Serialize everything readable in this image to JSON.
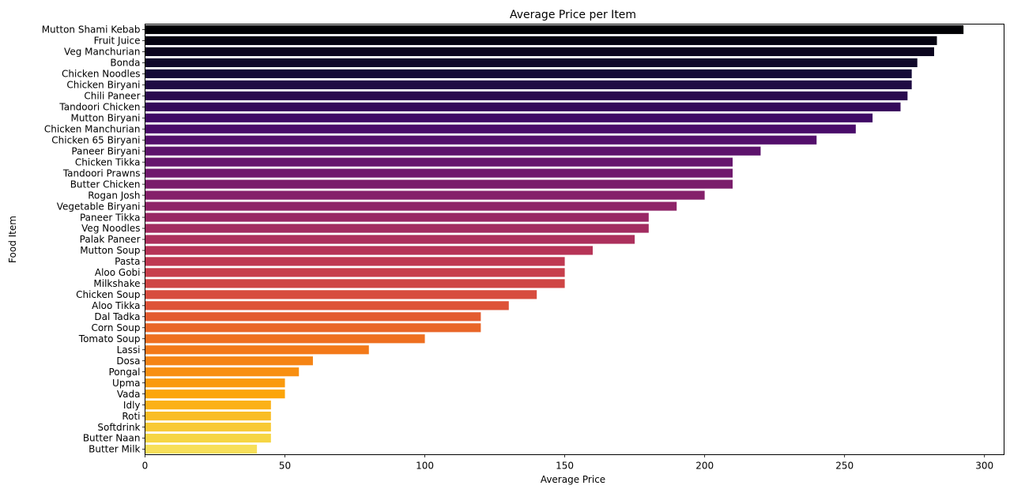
{
  "chart_data": {
    "type": "bar",
    "orientation": "horizontal",
    "title": "Average Price per Item",
    "xlabel": "Average Price",
    "ylabel": "Food Item",
    "xlim": [
      0,
      307
    ],
    "xticks": [
      0,
      50,
      100,
      150,
      200,
      250,
      300
    ],
    "grid": false,
    "colormap": "inferno",
    "categories": [
      "Mutton Shami Kebab",
      "Fruit Juice",
      "Veg Manchurian",
      "Bonda",
      "Chicken Noodles",
      "Chicken Biryani",
      "Chili Paneer",
      "Tandoori Chicken",
      "Mutton Biryani",
      "Chicken Manchurian",
      "Chicken 65 Biryani",
      "Paneer Biryani",
      "Chicken Tikka",
      "Tandoori Prawns",
      "Butter Chicken",
      "Rogan Josh",
      "Vegetable Biryani",
      "Paneer Tikka",
      "Veg Noodles",
      "Palak Paneer",
      "Mutton Soup",
      "Pasta",
      "Aloo Gobi",
      "Milkshake",
      "Chicken Soup",
      "Aloo Tikka",
      "Dal Tadka",
      "Corn Soup",
      "Tomato Soup",
      "Lassi",
      "Dosa",
      "Pongal",
      "Upma",
      "Vada",
      "Idly",
      "Roti",
      "Softdrink",
      "Butter Naan",
      "Butter Milk"
    ],
    "values": [
      292.5,
      283,
      282,
      276,
      274,
      274,
      272.5,
      270,
      260,
      254,
      240,
      220,
      210,
      210,
      210,
      200,
      190,
      180,
      180,
      175,
      160,
      150,
      150,
      150,
      140,
      130,
      120,
      120,
      100,
      80,
      60,
      55,
      50,
      50,
      45,
      45,
      45,
      45,
      40
    ]
  }
}
